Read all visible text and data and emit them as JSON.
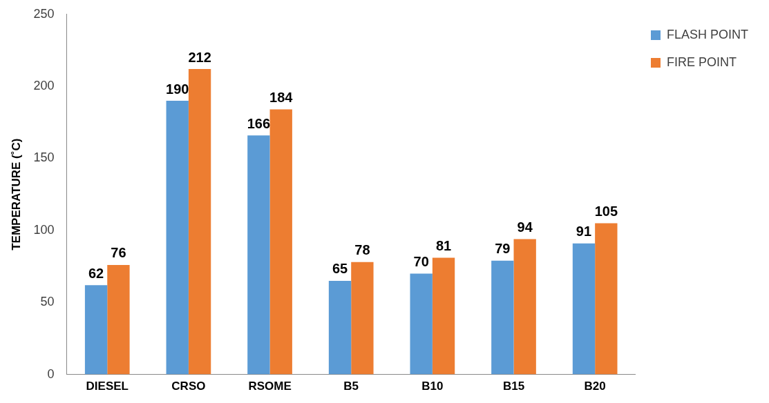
{
  "chart_data": {
    "type": "bar",
    "ylabel": "TEMPERATURE (˚C)",
    "categories": [
      "DIESEL",
      "CRSO",
      "RSOME",
      "B5",
      "B10",
      "B15",
      "B20"
    ],
    "series": [
      {
        "name": "FLASH POINT",
        "color": "#5b9bd5",
        "values": [
          62,
          190,
          166,
          65,
          70,
          79,
          91
        ]
      },
      {
        "name": "FIRE POINT",
        "color": "#ed7d31",
        "values": [
          76,
          212,
          184,
          78,
          81,
          94,
          105
        ]
      }
    ],
    "ylim": [
      0,
      250
    ],
    "yticks": [
      0,
      50,
      100,
      150,
      200,
      250
    ],
    "grid": false,
    "legend": "top right",
    "data_labels": true
  }
}
